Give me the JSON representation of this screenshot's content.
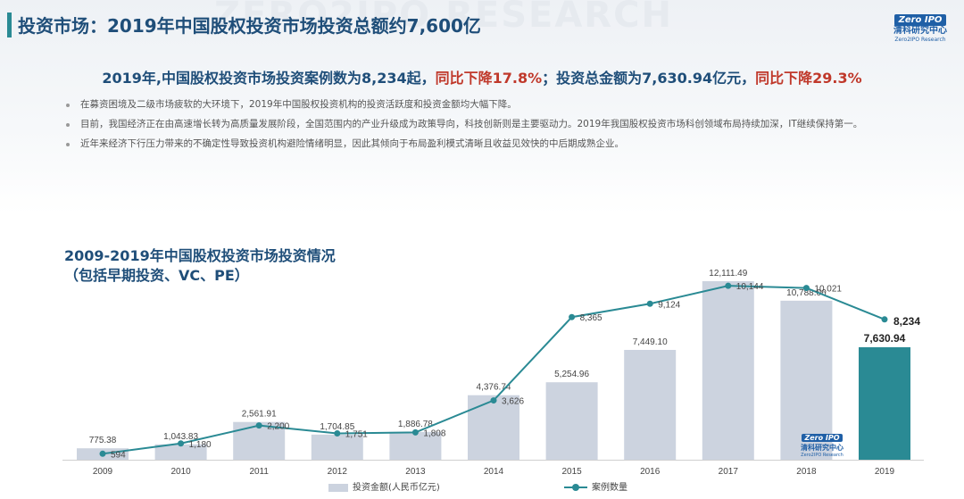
{
  "header": {
    "watermark": "ZERO2IPO RESEARCH",
    "title": "投资市场：2019年中国股权投资市场投资总额约7,600亿",
    "logo": {
      "box": "Zero IPO",
      "cn": "清科研究中心",
      "en": "Zero2IPO Research"
    }
  },
  "headline": {
    "part1": "2019年,中国股权投资市场投资案例数为8,234起，",
    "part2": "同比下降17.8%",
    "part3": "；投资总金额为7,630.94亿元，",
    "part4": "同比下降29.3%"
  },
  "bullets": [
    "在募资困境及二级市场疲软的大环境下，2019年中国股权投资机构的投资活跃度和投资金额均大幅下降。",
    "目前，我国经济正在由高速增长转为高质量发展阶段，全国范围内的产业升级成为政策导向，科技创新则是主要驱动力。2019年我国股权投资市场科创领域布局持续加深，IT继续保持第一。",
    "近年来经济下行压力带来的不确定性导致投资机构避险情绪明显，因此其倾向于布局盈利模式清晰且收益见效快的中后期成熟企业。"
  ],
  "chart_data": {
    "type": "bar",
    "title": "2009-2019年中国股权投资市场投资情况",
    "subtitle": "（包括早期投资、VC、PE）",
    "categories": [
      "2009",
      "2010",
      "2011",
      "2012",
      "2013",
      "2014",
      "2015",
      "2016",
      "2017",
      "2018",
      "2019"
    ],
    "series": [
      {
        "name": "投资金额(人民币亿元)",
        "kind": "bar",
        "values": [
          775.38,
          1043.83,
          2561.91,
          1704.85,
          1886.78,
          4376.74,
          5254.96,
          7449.1,
          12111.49,
          10788.06,
          7630.94
        ],
        "labels": [
          "775.38",
          "1,043.83",
          "2,561.91",
          "1,704.85",
          "1,886.78",
          "4,376.74",
          "5,254.96",
          "7,449.10",
          "12,111.49",
          "10,788.06",
          "7,630.94"
        ]
      },
      {
        "name": "案例数量",
        "kind": "line",
        "values": [
          594,
          1180,
          2200,
          1751,
          1808,
          3626,
          8365,
          9124,
          10144,
          10021,
          8234
        ],
        "labels": [
          "594",
          "1,180",
          "2,200",
          "1,751",
          "1,808",
          "3,626",
          "8,365",
          "9,124",
          "10,144",
          "10,021",
          "8,234"
        ]
      }
    ],
    "colors": {
      "bar": "#ccd3df",
      "bar_highlight": "#2a8a94",
      "line": "#2a8a94"
    },
    "highlight_category": "2019",
    "legend_position": "bottom",
    "grid": false
  },
  "footer_logo": {
    "box": "Zero IPO",
    "cn": "清科研究中心",
    "en": "Zero2IPO Research"
  }
}
